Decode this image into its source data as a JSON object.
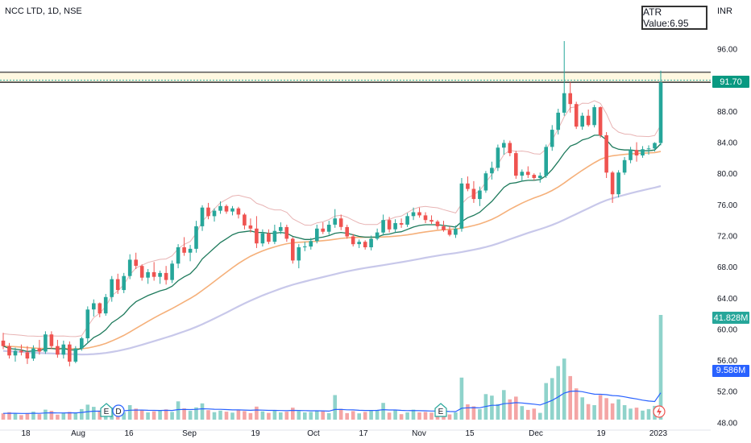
{
  "header": {
    "symbol": "NCC LTD, 1D, NSE",
    "atr_label": "ATR Value:6.95",
    "currency": "INR"
  },
  "price_badges": {
    "last_price": "91.70",
    "volume_label": "41.828M",
    "volume_ma_label": "9.586M"
  },
  "colors": {
    "up": "#26a69a",
    "down": "#ef5350",
    "ema_fast": "#1e7a5c",
    "ema_mid": "#f5b07a",
    "ema_slow": "#c8c8ea",
    "bb_band": "#e8b4b4",
    "cloud": "#fff8e1",
    "vol_ma": "#2962ff",
    "price_badge": "#089981",
    "volume_badge": "#26a69a",
    "vol_ma_badge": "#2962ff"
  },
  "chart_data": {
    "type": "candlestick",
    "title": "NCC LTD, 1D, NSE",
    "y_axis": {
      "ticks": [
        "96.00",
        "92.00",
        "88.00",
        "84.00",
        "80.00",
        "76.00",
        "72.00",
        "68.00",
        "64.00",
        "60.00",
        "56.00",
        "52.00",
        "48.00"
      ],
      "ylim": [
        47,
        100
      ]
    },
    "x_axis": {
      "ticks": [
        "18",
        "Aug",
        "16",
        "Sep",
        "19",
        "Oct",
        "17",
        "Nov",
        "15",
        "Dec",
        "19",
        "2023"
      ]
    },
    "horizontal_lines": [
      93.0,
      91.7
    ],
    "events": [
      "E",
      "D",
      "E"
    ],
    "candles": [
      [
        58.5,
        59.5,
        57.4,
        57.8
      ],
      [
        57.8,
        58.2,
        56.2,
        56.6
      ],
      [
        56.6,
        57.6,
        55.8,
        57.2
      ],
      [
        57.2,
        58.0,
        56.6,
        57.0
      ],
      [
        57.0,
        57.8,
        55.5,
        56.2
      ],
      [
        56.2,
        57.9,
        55.9,
        57.5
      ],
      [
        57.5,
        58.6,
        56.7,
        57.1
      ],
      [
        57.1,
        59.7,
        56.8,
        59.3
      ],
      [
        59.3,
        59.7,
        57.4,
        57.8
      ],
      [
        57.8,
        58.6,
        56.3,
        56.7
      ],
      [
        56.7,
        58.5,
        56.2,
        58.0
      ],
      [
        58.0,
        58.4,
        55.2,
        55.8
      ],
      [
        55.8,
        57.8,
        55.6,
        57.5
      ],
      [
        57.5,
        59.0,
        57.2,
        58.8
      ],
      [
        58.8,
        62.9,
        58.2,
        62.5
      ],
      [
        62.5,
        63.8,
        61.6,
        63.3
      ],
      [
        63.3,
        63.4,
        61.5,
        62.0
      ],
      [
        62.0,
        64.5,
        61.7,
        64.1
      ],
      [
        64.1,
        66.8,
        63.5,
        66.4
      ],
      [
        66.4,
        67.1,
        64.5,
        65.0
      ],
      [
        65.0,
        67.2,
        64.6,
        66.8
      ],
      [
        66.8,
        69.6,
        66.4,
        68.9
      ],
      [
        68.9,
        69.8,
        67.7,
        68.1
      ],
      [
        68.1,
        68.3,
        66.2,
        66.6
      ],
      [
        66.6,
        67.7,
        65.8,
        67.3
      ],
      [
        67.3,
        68.6,
        66.2,
        66.7
      ],
      [
        66.7,
        67.5,
        65.8,
        67.2
      ],
      [
        67.2,
        68.1,
        65.7,
        66.3
      ],
      [
        66.3,
        68.8,
        65.9,
        68.4
      ],
      [
        68.4,
        70.9,
        67.8,
        70.5
      ],
      [
        70.5,
        71.8,
        69.4,
        69.8
      ],
      [
        69.8,
        70.8,
        68.7,
        70.3
      ],
      [
        70.3,
        73.9,
        69.8,
        73.2
      ],
      [
        73.2,
        75.9,
        72.6,
        75.6
      ],
      [
        75.6,
        76.2,
        74.1,
        74.5
      ],
      [
        74.5,
        75.5,
        73.8,
        75.2
      ],
      [
        75.2,
        76.4,
        74.8,
        75.8
      ],
      [
        75.8,
        76.0,
        74.8,
        75.1
      ],
      [
        75.1,
        75.8,
        74.6,
        75.5
      ],
      [
        75.5,
        75.7,
        74.2,
        74.7
      ],
      [
        74.7,
        74.9,
        72.8,
        73.3
      ],
      [
        73.3,
        74.2,
        72.4,
        72.9
      ],
      [
        72.9,
        74.5,
        70.4,
        71.0
      ],
      [
        71.0,
        72.8,
        70.6,
        72.3
      ],
      [
        72.3,
        72.8,
        70.9,
        71.2
      ],
      [
        71.2,
        73.4,
        70.9,
        72.6
      ],
      [
        72.6,
        73.7,
        72.2,
        73.1
      ],
      [
        73.1,
        73.4,
        71.2,
        71.6
      ],
      [
        71.6,
        71.8,
        68.4,
        68.8
      ],
      [
        68.8,
        70.9,
        67.8,
        70.5
      ],
      [
        70.5,
        71.2,
        70.0,
        70.6
      ],
      [
        70.6,
        71.7,
        70.2,
        71.3
      ],
      [
        71.3,
        73.4,
        71.0,
        72.9
      ],
      [
        72.9,
        73.7,
        72.2,
        72.5
      ],
      [
        72.5,
        73.9,
        72.1,
        73.4
      ],
      [
        73.4,
        75.4,
        73.0,
        74.2
      ],
      [
        74.2,
        74.7,
        72.7,
        73.1
      ],
      [
        73.1,
        73.4,
        71.6,
        71.9
      ],
      [
        71.9,
        72.2,
        70.6,
        70.9
      ],
      [
        70.9,
        71.5,
        70.4,
        71.2
      ],
      [
        71.2,
        71.4,
        70.2,
        70.5
      ],
      [
        70.5,
        72.0,
        70.1,
        71.6
      ],
      [
        71.6,
        72.9,
        71.4,
        72.4
      ],
      [
        72.4,
        74.7,
        72.0,
        74.0
      ],
      [
        74.0,
        74.4,
        72.4,
        72.8
      ],
      [
        72.8,
        74.1,
        72.4,
        73.6
      ],
      [
        73.6,
        74.2,
        73.0,
        73.4
      ],
      [
        73.4,
        74.9,
        73.1,
        74.5
      ],
      [
        74.5,
        75.6,
        74.0,
        75.0
      ],
      [
        75.0,
        75.6,
        74.3,
        74.6
      ],
      [
        74.6,
        75.0,
        73.6,
        74.0
      ],
      [
        74.0,
        74.6,
        73.5,
        73.8
      ],
      [
        73.8,
        74.0,
        72.8,
        73.2
      ],
      [
        73.2,
        73.9,
        72.5,
        72.7
      ],
      [
        72.7,
        73.2,
        71.9,
        72.1
      ],
      [
        72.1,
        73.3,
        71.7,
        72.9
      ],
      [
        72.9,
        79.4,
        72.5,
        78.7
      ],
      [
        78.7,
        79.6,
        77.7,
        78.0
      ],
      [
        78.0,
        79.0,
        76.2,
        76.7
      ],
      [
        76.7,
        78.3,
        75.8,
        77.8
      ],
      [
        77.8,
        80.3,
        77.5,
        80.0
      ],
      [
        80.0,
        81.5,
        79.2,
        80.7
      ],
      [
        80.7,
        83.7,
        80.3,
        83.3
      ],
      [
        83.3,
        84.3,
        82.4,
        83.9
      ],
      [
        83.9,
        84.2,
        82.2,
        82.6
      ],
      [
        82.6,
        82.9,
        79.3,
        79.7
      ],
      [
        79.7,
        80.5,
        79.0,
        80.2
      ],
      [
        80.2,
        80.9,
        79.4,
        79.8
      ],
      [
        79.8,
        80.0,
        79.1,
        79.4
      ],
      [
        79.4,
        80.1,
        78.8,
        79.7
      ],
      [
        79.7,
        83.7,
        79.4,
        83.4
      ],
      [
        83.4,
        86.2,
        82.9,
        85.6
      ],
      [
        85.6,
        88.3,
        85.0,
        87.8
      ],
      [
        87.8,
        97.0,
        87.4,
        90.3
      ],
      [
        90.3,
        91.7,
        87.8,
        88.9
      ],
      [
        88.9,
        89.2,
        85.7,
        86.0
      ],
      [
        86.0,
        87.8,
        85.6,
        87.4
      ],
      [
        87.4,
        88.2,
        86.0,
        86.2
      ],
      [
        86.2,
        88.8,
        85.9,
        88.5
      ],
      [
        88.5,
        88.6,
        84.6,
        84.9
      ],
      [
        84.9,
        85.3,
        79.4,
        80.1
      ],
      [
        80.1,
        80.3,
        76.2,
        77.3
      ],
      [
        77.3,
        80.4,
        76.9,
        80.1
      ],
      [
        80.1,
        82.1,
        79.8,
        81.7
      ],
      [
        81.7,
        83.4,
        81.3,
        83.0
      ],
      [
        83.0,
        84.0,
        81.5,
        82.3
      ],
      [
        82.3,
        83.5,
        82.0,
        83.1
      ],
      [
        83.1,
        83.6,
        82.4,
        83.2
      ],
      [
        83.2,
        84.0,
        82.8,
        83.9
      ],
      [
        83.9,
        93.2,
        83.6,
        91.7
      ]
    ],
    "volume": {
      "values": [
        2.5,
        3.0,
        2.4,
        1.8,
        2.6,
        3.2,
        2.2,
        4.0,
        3.5,
        2.0,
        2.8,
        3.1,
        2.6,
        4.2,
        6.0,
        5.1,
        3.6,
        5.5,
        4.8,
        2.5,
        3.0,
        5.8,
        4.4,
        3.8,
        2.9,
        3.3,
        3.6,
        4.1,
        3.1,
        7.3,
        4.5,
        3.5,
        4.9,
        6.5,
        3.8,
        3.0,
        3.6,
        3.2,
        2.8,
        3.9,
        3.4,
        2.6,
        5.2,
        3.3,
        2.7,
        3.8,
        2.9,
        3.2,
        4.8,
        3.4,
        2.9,
        3.1,
        3.4,
        3.3,
        2.6,
        9.8,
        4.3,
        2.6,
        3.4,
        2.5,
        3.1,
        3.5,
        3.9,
        6.7,
        2.8,
        3.7,
        2.2,
        2.9,
        4.0,
        2.9,
        3.1,
        2.8,
        3.3,
        3.0,
        2.1,
        2.9,
        16.8,
        6.1,
        5.3,
        4.2,
        10.2,
        9.6,
        6.2,
        11.8,
        8.1,
        9.2,
        5.4,
        3.9,
        4.4,
        2.7,
        14.6,
        16.6,
        21.4,
        24.4,
        17.4,
        12.5,
        8.9,
        6.2,
        5.8,
        9.8,
        8.6,
        6.5,
        8.1,
        5.8,
        4.4,
        4.8,
        3.6,
        4.2,
        5.5,
        41.828
      ],
      "ma_label": "9.586M"
    },
    "ema_fast": [
      57.8,
      57.5,
      57.4,
      57.3,
      57.1,
      57.2,
      57.2,
      57.5,
      57.5,
      57.4,
      57.5,
      57.3,
      57.3,
      57.5,
      58.2,
      58.9,
      59.3,
      59.9,
      60.8,
      61.3,
      61.9,
      62.8,
      63.5,
      63.9,
      64.3,
      64.6,
      64.9,
      65.1,
      65.5,
      66.2,
      66.7,
      67.1,
      67.9,
      69.0,
      69.7,
      70.4,
      71.1,
      71.6,
      72.1,
      72.4,
      72.5,
      72.6,
      72.4,
      72.4,
      72.3,
      72.3,
      72.4,
      72.3,
      71.9,
      71.7,
      71.5,
      71.5,
      71.7,
      71.8,
      72.0,
      72.3,
      72.4,
      72.3,
      72.1,
      71.9,
      71.8,
      71.8,
      71.8,
      72.1,
      72.2,
      72.4,
      72.5,
      72.8,
      73.1,
      73.3,
      73.4,
      73.4,
      73.4,
      73.3,
      73.2,
      73.1,
      73.8,
      74.3,
      74.6,
      75.0,
      75.7,
      76.4,
      77.3,
      78.2,
      78.7,
      78.8,
      79.0,
      79.1,
      79.1,
      79.2,
      79.7,
      80.5,
      81.5,
      82.6,
      83.5,
      83.8,
      84.3,
      84.5,
      84.9,
      84.9,
      84.3,
      83.4,
      83.1,
      83.0,
      83.0,
      82.9,
      82.9,
      82.9,
      83.0,
      83.8
    ]
  }
}
